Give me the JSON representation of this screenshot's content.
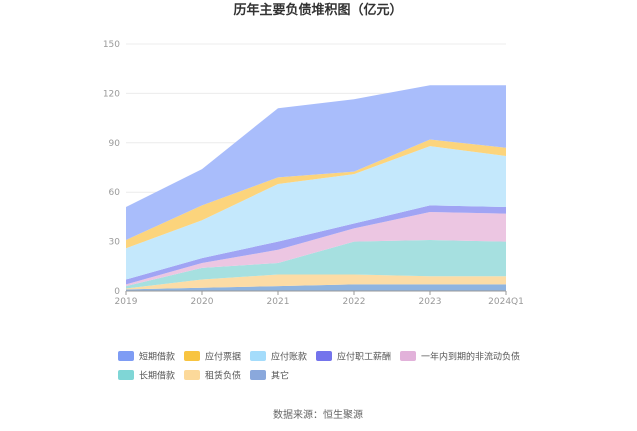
{
  "chart_data": {
    "type": "area",
    "stacked": true,
    "title": "历年主要负债堆积图（亿元）",
    "source": "数据来源：恒生聚源",
    "xlabel": "",
    "ylabel": "",
    "categories": [
      "2019",
      "2020",
      "2021",
      "2022",
      "2023",
      "2024Q1"
    ],
    "ylim": [
      0,
      150
    ],
    "yticks": [
      0,
      30,
      60,
      90,
      120,
      150
    ],
    "grid": true,
    "legend_position": "bottom",
    "series": [
      {
        "name": "其它",
        "color": "#8fb4e0",
        "values": [
          1,
          2,
          3,
          4,
          4,
          4
        ]
      },
      {
        "name": "租赁负债",
        "color": "#fcdca6",
        "values": [
          0.5,
          5,
          7,
          6,
          5,
          5
        ]
      },
      {
        "name": "长期借款",
        "color": "#a6e0e0",
        "values": [
          1.5,
          7,
          7,
          20,
          22,
          21
        ]
      },
      {
        "name": "一年内到期的非流动负债",
        "color": "#ecc6e2",
        "values": [
          1,
          3,
          8,
          8,
          17,
          17
        ]
      },
      {
        "name": "应付职工薪酬",
        "color": "#a0a4f4",
        "values": [
          3,
          3,
          5,
          3,
          4,
          4
        ]
      },
      {
        "name": "应付账款",
        "color": "#c4e8fc",
        "values": [
          19,
          23,
          35,
          30,
          36,
          31
        ]
      },
      {
        "name": "应付票据",
        "color": "#fcd47c",
        "values": [
          5,
          9,
          4,
          1.5,
          4,
          5
        ]
      },
      {
        "name": "短期借款",
        "color": "#a9bdfb",
        "values": [
          20,
          22,
          42,
          44,
          33,
          38
        ]
      }
    ],
    "legend_order": [
      "短期借款",
      "应付票据",
      "应付账款",
      "应付职工薪酬",
      "一年内到期的非流动负债",
      "长期借款",
      "租赁负债",
      "其它"
    ],
    "legend_swatch_colors": {
      "短期借款": "#7e9cf4",
      "应付票据": "#f8c440",
      "应付账款": "#a4dcfb",
      "应付职工薪酬": "#7474ec",
      "一年内到期的非流动负债": "#e2b2da",
      "长期借款": "#7fd6d6",
      "租赁负债": "#fcd99a",
      "其它": "#8aa8dc"
    }
  }
}
